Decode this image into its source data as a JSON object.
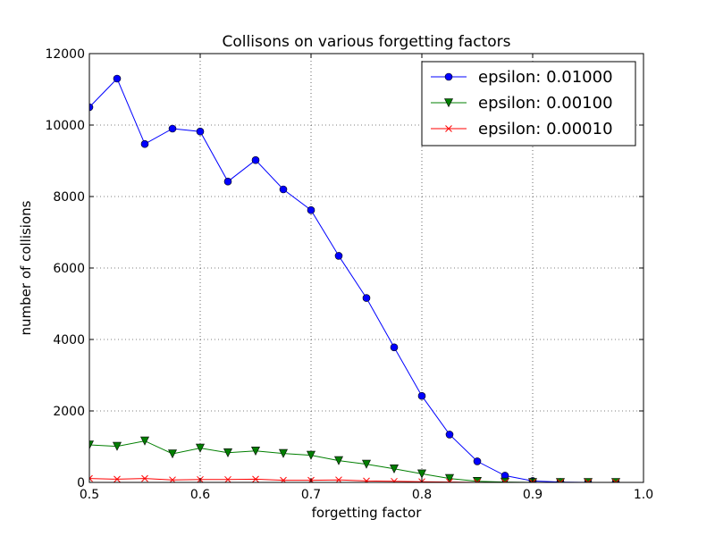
{
  "chart_data": {
    "type": "line",
    "title": "Collisons on various forgetting factors",
    "xlabel": "forgetting factor",
    "ylabel": "number of collisions",
    "xlim": [
      0.5,
      1.0
    ],
    "ylim": [
      0,
      12000
    ],
    "xticks": [
      "0.5",
      "0.6",
      "0.7",
      "0.8",
      "0.9",
      "1.0"
    ],
    "yticks": [
      "0",
      "2000",
      "4000",
      "6000",
      "8000",
      "10000",
      "12000"
    ],
    "grid": true,
    "legend_position": "top-right",
    "x": [
      0.5,
      0.525,
      0.55,
      0.575,
      0.6,
      0.625,
      0.65,
      0.675,
      0.7,
      0.725,
      0.75,
      0.775,
      0.8,
      0.825,
      0.85,
      0.875,
      0.9,
      0.925,
      0.95,
      0.975
    ],
    "series": [
      {
        "name": "epsilon: 0.01000",
        "color": "#0000ff",
        "marker": "circle",
        "values": [
          10500,
          11300,
          9470,
          9900,
          9820,
          8420,
          9020,
          8200,
          7620,
          6340,
          5160,
          3780,
          2420,
          1340,
          590,
          190,
          40,
          10,
          0,
          0
        ]
      },
      {
        "name": "epsilon: 0.00100",
        "color": "#007f00",
        "marker": "triangle-down",
        "values": [
          1050,
          1010,
          1160,
          800,
          960,
          830,
          880,
          810,
          760,
          610,
          510,
          380,
          240,
          110,
          30,
          10,
          0,
          0,
          0,
          0
        ]
      },
      {
        "name": "epsilon: 0.00010",
        "color": "#ff0000",
        "marker": "x",
        "values": [
          110,
          90,
          110,
          70,
          80,
          80,
          90,
          60,
          60,
          70,
          40,
          30,
          20,
          10,
          0,
          0,
          0,
          0,
          0,
          0
        ]
      }
    ]
  }
}
